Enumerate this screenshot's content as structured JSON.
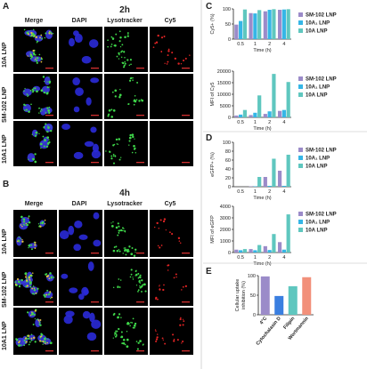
{
  "panels": {
    "A": {
      "label": "A",
      "title": "2h"
    },
    "B": {
      "label": "B",
      "title": "4h"
    },
    "C": {
      "label": "C"
    },
    "D": {
      "label": "D"
    },
    "E": {
      "label": "E"
    }
  },
  "micrographs": {
    "columns": [
      "Merge",
      "DAPI",
      "Lysotracker",
      "Cy5"
    ],
    "rows_A": [
      "10A LNP",
      "SM-102 LNP",
      "10A1 LNP"
    ],
    "rows_B": [
      "10A LNP",
      "SM-102 LNP",
      "10A1 LNP"
    ]
  },
  "colors": {
    "sm102": "#9b8bc9",
    "lnp10a1": "#35b6e6",
    "lnp10a": "#5fc7bf",
    "e_4c": "#9b8bc9",
    "e_cyto": "#3a7fe0",
    "e_fil": "#5fc7bf",
    "e_wort": "#f2907a"
  },
  "legend": [
    "SM-102 LNP",
    "10A₁ LNP",
    "10A LNP"
  ],
  "chart_data": [
    {
      "type": "bar",
      "id": "C-top",
      "ylabel": "Cy5+ (%)",
      "xlabel": "Time (h)",
      "categories": [
        "0.5",
        "1",
        "2",
        "4"
      ],
      "ylim": [
        0,
        100
      ],
      "yticks": [
        0,
        50,
        100
      ],
      "series": [
        {
          "name": "SM-102 LNP",
          "values": [
            48,
            86,
            92,
            97
          ]
        },
        {
          "name": "10A₁ LNP",
          "values": [
            60,
            85,
            97,
            98
          ]
        },
        {
          "name": "10A LNP",
          "values": [
            98,
            96,
            99,
            99
          ]
        }
      ]
    },
    {
      "type": "bar",
      "id": "C-bottom",
      "ylabel": "MFI of Cy5",
      "xlabel": "Time (h)",
      "categories": [
        "0.5",
        "1",
        "2",
        "4"
      ],
      "ylim": [
        0,
        20000
      ],
      "yticks": [
        0,
        5000,
        10000,
        15000,
        20000
      ],
      "series": [
        {
          "name": "SM-102 LNP",
          "values": [
            800,
            1000,
            1500,
            2800
          ]
        },
        {
          "name": "10A₁ LNP",
          "values": [
            1200,
            2000,
            2600,
            3200
          ]
        },
        {
          "name": "10A LNP",
          "values": [
            3200,
            9500,
            18800,
            15300
          ]
        }
      ]
    },
    {
      "type": "bar",
      "id": "D-top",
      "ylabel": "eGFP+ (%)",
      "xlabel": "Time (h)",
      "categories": [
        "0.5",
        "1",
        "2",
        "4"
      ],
      "ylim": [
        0,
        100
      ],
      "yticks": [
        0,
        20,
        40,
        60,
        80,
        100
      ],
      "series": [
        {
          "name": "SM-102 LNP",
          "values": [
            0,
            1,
            22,
            36
          ]
        },
        {
          "name": "10A₁ LNP",
          "values": [
            0,
            1,
            2,
            2
          ]
        },
        {
          "name": "10A LNP",
          "values": [
            0,
            22,
            63,
            72
          ]
        }
      ]
    },
    {
      "type": "bar",
      "id": "D-bottom",
      "ylabel": "MFI of eGFP",
      "xlabel": "Time (h)",
      "categories": [
        "0.5",
        "1",
        "2",
        "4"
      ],
      "ylim": [
        0,
        4000
      ],
      "yticks": [
        0,
        1000,
        2000,
        3000,
        4000
      ],
      "series": [
        {
          "name": "SM-102 LNP",
          "values": [
            250,
            300,
            550,
            900
          ]
        },
        {
          "name": "10A₁ LNP",
          "values": [
            200,
            200,
            220,
            250
          ]
        },
        {
          "name": "10A LNP",
          "values": [
            300,
            650,
            1600,
            3300
          ]
        }
      ]
    },
    {
      "type": "bar",
      "id": "E",
      "ylabel": "Cellular uptake inhibition (%)",
      "categories": [
        "4°C",
        "Cytochalasin D",
        "Filipin",
        "Wortmannin"
      ],
      "ylim": [
        0,
        100
      ],
      "yticks": [
        0,
        50,
        100
      ],
      "values": [
        98,
        48,
        73,
        96
      ]
    }
  ]
}
